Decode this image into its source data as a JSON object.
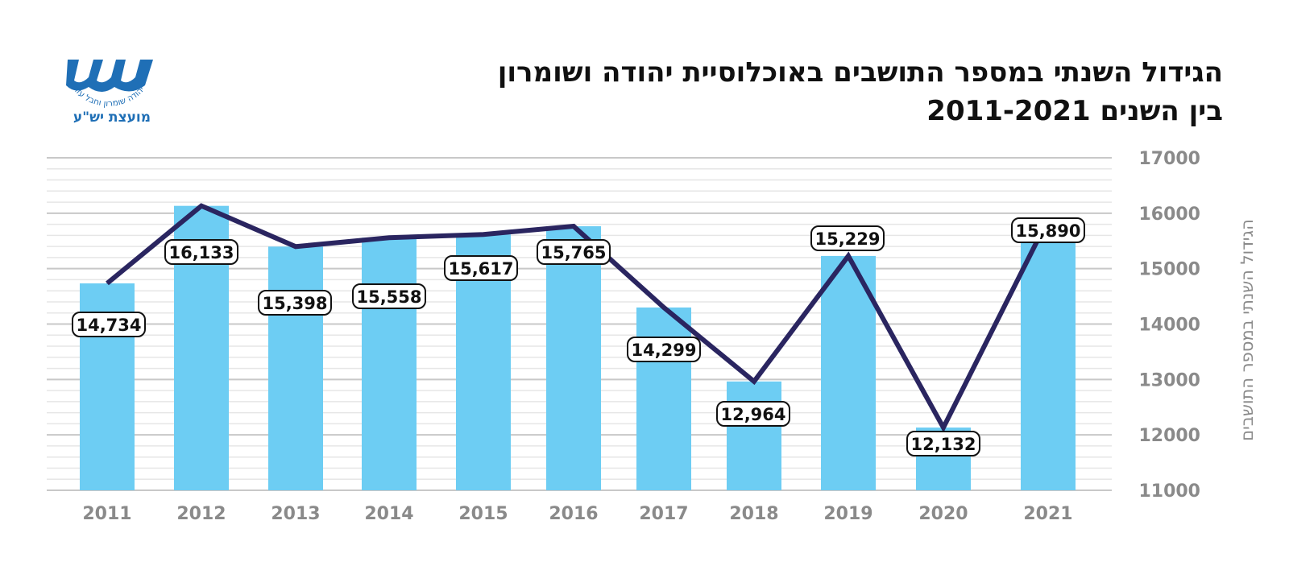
{
  "header": {
    "title_line1": "הגידול השנתי במספר התושבים באוכלוסיית יהודה ושומרון",
    "title_line2": "בין השנים 2011-2021"
  },
  "logo": {
    "caption": "מועצת יש\"ע",
    "arc_text": "יהודה שומרון וחבל עזה"
  },
  "colors": {
    "bar": "#6dcdf3",
    "line": "#2a2560",
    "grid": "#d9d9d9",
    "tick": "#8a8a8a",
    "logo": "#1f6fb6"
  },
  "chart_data": {
    "type": "bar",
    "title": "הגידול השנתי במספר התושבים באוכלוסיית יהודה ושומרון בין השנים 2011-2021",
    "xlabel": "",
    "ylabel": "הגידול השנתי במספר התושבים",
    "ylim": [
      11000,
      17000
    ],
    "yticks": [
      11000,
      12000,
      13000,
      14000,
      15000,
      16000,
      17000
    ],
    "y_axis_side": "right",
    "categories": [
      "2011",
      "2012",
      "2013",
      "2014",
      "2015",
      "2016",
      "2017",
      "2018",
      "2019",
      "2020",
      "2021"
    ],
    "series": [
      {
        "name": "bars",
        "kind": "bar",
        "values": [
          14734,
          16133,
          15398,
          15558,
          15617,
          15765,
          14299,
          12964,
          15229,
          12132,
          15890
        ]
      },
      {
        "name": "line",
        "kind": "line",
        "values": [
          14734,
          16133,
          15398,
          15558,
          15617,
          15765,
          14299,
          12964,
          15229,
          12132,
          15890
        ]
      }
    ],
    "data_labels": [
      "14,734",
      "16,133",
      "15,398",
      "15,558",
      "15,617",
      "15,765",
      "14,299",
      "12,964",
      "15,229",
      "12,132",
      "15,890"
    ]
  }
}
